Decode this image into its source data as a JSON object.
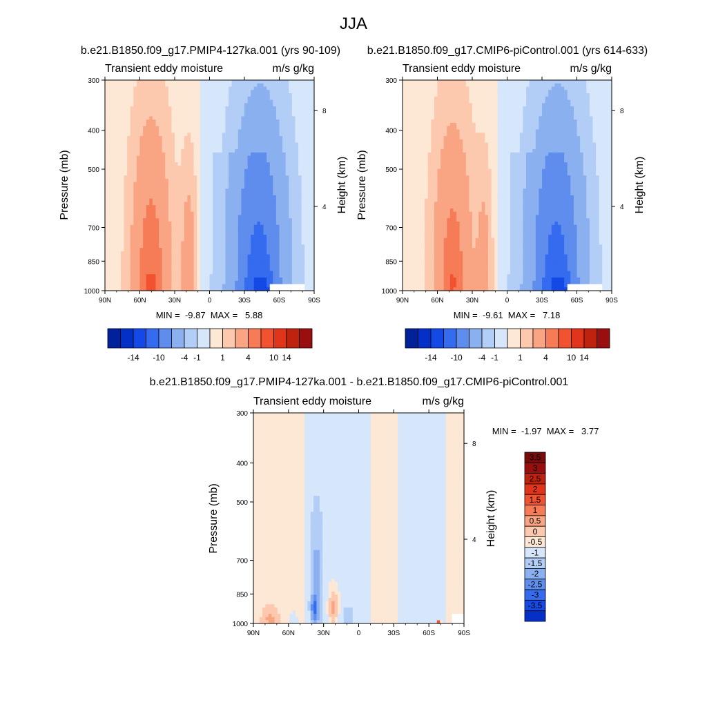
{
  "figure": {
    "title": "JJA"
  },
  "colors": {
    "pos": [
      "#fde7d5",
      "#fcc8ae",
      "#f9a584",
      "#f67c57",
      "#f2522f",
      "#e0341b",
      "#bf2310",
      "#990f0f",
      "#7a0b0b"
    ],
    "neg": [
      "#d6e6fb",
      "#b2cdf6",
      "#8bb0f0",
      "#5f8ded",
      "#356bee",
      "#1549e6",
      "#0430c7",
      "#002199",
      "#000e7a"
    ],
    "frame": "#000000"
  },
  "chart_data": [
    {
      "id": "p1",
      "type": "heatmap",
      "title": "b.e21.B1850.f09_g17.PMIP4-127ka.001 (yrs 90-109)",
      "left_label": "Transient eddy moisture",
      "right_label": "m/s g/kg",
      "xlabel": "",
      "ylabel": "Pressure (mb)",
      "ylabel_right": "Height (km)",
      "xticks": [
        "90N",
        "60N",
        "30N",
        "0",
        "30S",
        "60S",
        "90S"
      ],
      "yticks": [
        "300",
        "400",
        "500",
        "700",
        "850",
        "1000"
      ],
      "yticks_right": [
        "8",
        "4"
      ],
      "stats": "MIN =  -9.87  MAX =   5.88",
      "colorbar": {
        "orientation": "horizontal",
        "labels": [
          "-14",
          "-10",
          "-4",
          "-1",
          "1",
          "4",
          "10",
          "14"
        ]
      }
    },
    {
      "id": "p2",
      "type": "heatmap",
      "title": "b.e21.B1850.f09_g17.CMIP6-piControl.001 (yrs 614-633)",
      "left_label": "Transient eddy moisture",
      "right_label": "m/s g/kg",
      "xlabel": "",
      "ylabel": "Pressure (mb)",
      "ylabel_right": "Height (km)",
      "xticks": [
        "90N",
        "60N",
        "30N",
        "0",
        "30S",
        "60S",
        "90S"
      ],
      "yticks": [
        "300",
        "400",
        "500",
        "700",
        "850",
        "1000"
      ],
      "yticks_right": [
        "8",
        "4"
      ],
      "stats": "MIN =  -9.61  MAX =   7.18",
      "colorbar": {
        "orientation": "horizontal",
        "labels": [
          "-14",
          "-10",
          "-4",
          "-1",
          "1",
          "4",
          "10",
          "14"
        ]
      }
    },
    {
      "id": "p3",
      "type": "heatmap",
      "title": "b.e21.B1850.f09_g17.PMIP4-127ka.001 - b.e21.B1850.f09_g17.CMIP6-piControl.001",
      "left_label": "Transient eddy moisture",
      "right_label": "m/s g/kg",
      "xlabel": "",
      "ylabel": "Pressure (mb)",
      "ylabel_right": "Height (km)",
      "xticks": [
        "90N",
        "60N",
        "30N",
        "0",
        "30S",
        "60S",
        "90S"
      ],
      "yticks": [
        "300",
        "400",
        "500",
        "700",
        "850",
        "1000"
      ],
      "yticks_right": [
        "8",
        "4"
      ],
      "stats": "MIN =  -1.97  MAX =   3.77",
      "colorbar": {
        "orientation": "vertical",
        "labels": [
          "3.5",
          "3",
          "2.5",
          "2",
          "1.5",
          "1",
          "0.5",
          "0",
          "-0.5",
          "-1",
          "-1.5",
          "-2",
          "-2.5",
          "-3",
          "-3.5"
        ]
      }
    }
  ]
}
